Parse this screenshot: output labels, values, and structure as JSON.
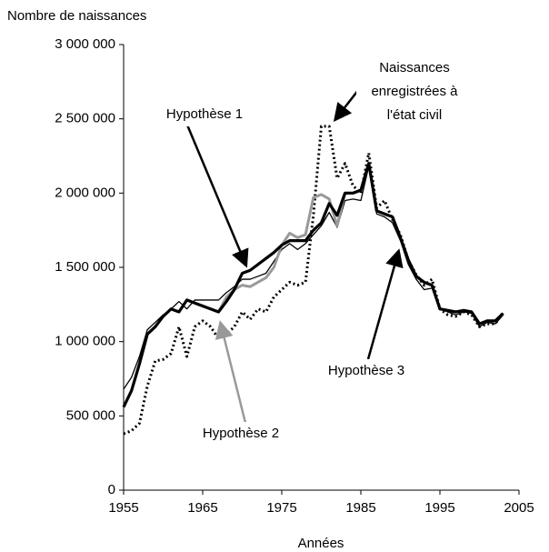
{
  "chart_data": {
    "type": "line",
    "y_label": "Nombre de naissances",
    "x_label": "Années",
    "x": [
      1955,
      1956,
      1957,
      1958,
      1959,
      1960,
      1961,
      1962,
      1963,
      1964,
      1965,
      1966,
      1967,
      1968,
      1969,
      1970,
      1971,
      1972,
      1973,
      1974,
      1975,
      1976,
      1977,
      1978,
      1979,
      1980,
      1981,
      1982,
      1983,
      1984,
      1985,
      1986,
      1987,
      1988,
      1989,
      1990,
      1991,
      1992,
      1993,
      1994,
      1995,
      1996,
      1997,
      1998,
      1999,
      2000,
      2001,
      2002,
      2003
    ],
    "series": [
      {
        "name": "Naissances enregistrées à l'état civil",
        "color": "#000000",
        "dashed": true,
        "values": [
          380000,
          400000,
          450000,
          700000,
          870000,
          880000,
          920000,
          1100000,
          900000,
          1100000,
          1140000,
          1100000,
          1020000,
          1050000,
          1100000,
          1200000,
          1150000,
          1220000,
          1200000,
          1300000,
          1350000,
          1400000,
          1380000,
          1400000,
          1850000,
          2450000,
          2450000,
          2100000,
          2200000,
          2050000,
          2000000,
          2270000,
          1900000,
          1950000,
          1820000,
          1720000,
          1550000,
          1450000,
          1380000,
          1420000,
          1220000,
          1180000,
          1170000,
          1200000,
          1180000,
          1100000,
          1120000,
          1120000,
          1200000
        ]
      },
      {
        "name": "Hypothèse 1",
        "color": "#000000",
        "dashed": false,
        "values": [
          680000,
          760000,
          900000,
          1080000,
          1130000,
          1180000,
          1220000,
          1270000,
          1220000,
          1280000,
          1280000,
          1280000,
          1280000,
          1330000,
          1370000,
          1420000,
          1420000,
          1440000,
          1460000,
          1540000,
          1620000,
          1660000,
          1620000,
          1660000,
          1720000,
          1780000,
          1870000,
          1770000,
          1950000,
          1960000,
          1950000,
          2180000,
          1860000,
          1840000,
          1800000,
          1680000,
          1520000,
          1420000,
          1350000,
          1360000,
          1220000,
          1200000,
          1180000,
          1200000,
          1190000,
          1100000,
          1130000,
          1120000,
          1180000
        ]
      },
      {
        "name": "Hypothèse 2",
        "color": "#999999",
        "dashed": false,
        "values": [
          560000,
          670000,
          850000,
          1050000,
          1100000,
          1170000,
          1220000,
          1200000,
          1280000,
          1260000,
          1240000,
          1220000,
          1200000,
          1300000,
          1350000,
          1380000,
          1370000,
          1400000,
          1430000,
          1500000,
          1650000,
          1730000,
          1700000,
          1720000,
          1970000,
          1990000,
          1960000,
          1780000,
          2000000,
          2000000,
          2020000,
          2200000,
          1880000,
          1860000,
          1840000,
          1700000,
          1550000,
          1440000,
          1400000,
          1380000,
          1220000,
          1210000,
          1200000,
          1210000,
          1200000,
          1120000,
          1140000,
          1140000,
          1190000
        ]
      },
      {
        "name": "Hypothèse 3",
        "color": "#000000",
        "dashed": false,
        "values": [
          560000,
          670000,
          850000,
          1050000,
          1100000,
          1170000,
          1220000,
          1200000,
          1280000,
          1260000,
          1240000,
          1220000,
          1200000,
          1270000,
          1350000,
          1460000,
          1480000,
          1520000,
          1560000,
          1600000,
          1650000,
          1680000,
          1680000,
          1680000,
          1750000,
          1800000,
          1930000,
          1850000,
          2000000,
          2000000,
          2020000,
          2200000,
          1880000,
          1860000,
          1840000,
          1700000,
          1550000,
          1440000,
          1400000,
          1380000,
          1220000,
          1210000,
          1200000,
          1210000,
          1200000,
          1120000,
          1140000,
          1140000,
          1190000
        ]
      }
    ],
    "xlim": [
      1955,
      2005
    ],
    "xticks": [
      1955,
      1965,
      1975,
      1985,
      1995,
      2005
    ],
    "ylim": [
      0,
      3000000
    ],
    "yticks": [
      0,
      {
        "value": 500000,
        "label": "500 000"
      },
      {
        "value": 1000000,
        "label": "1 000 000"
      },
      {
        "value": 1500000,
        "label": "1 500 000"
      },
      {
        "value": 2000000,
        "label": "2 000 000"
      },
      {
        "value": 2500000,
        "label": "2 500 000"
      },
      {
        "value": 3000000,
        "label": "3 000 000"
      }
    ],
    "grid": false
  }
}
